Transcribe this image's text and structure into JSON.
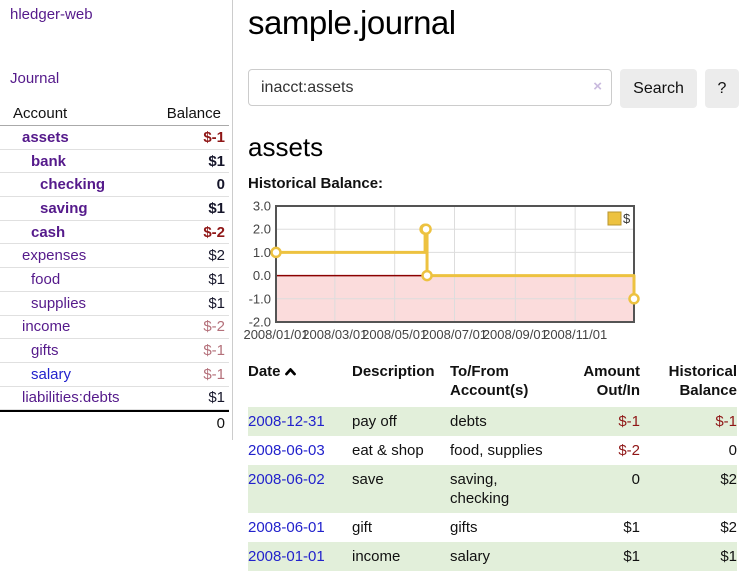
{
  "sidebar": {
    "app_title": "hledger-web",
    "journal_label": "Journal",
    "accounts_table": {
      "headers": {
        "account": "Account",
        "balance": "Balance"
      },
      "rows": [
        {
          "name": "assets",
          "depth": 1,
          "balance": "$-1",
          "emph": true,
          "tone": "neg-dark"
        },
        {
          "name": "bank",
          "depth": 2,
          "balance": "$1",
          "emph": true,
          "tone": "plain"
        },
        {
          "name": "checking",
          "depth": 3,
          "balance": "0",
          "emph": true,
          "tone": "plain"
        },
        {
          "name": "saving",
          "depth": 3,
          "balance": "$1",
          "emph": true,
          "tone": "plain"
        },
        {
          "name": "cash",
          "depth": 2,
          "balance": "$-2",
          "emph": true,
          "tone": "neg-dark"
        },
        {
          "name": "expenses",
          "depth": 1,
          "balance": "$2",
          "emph": false,
          "tone": "plain"
        },
        {
          "name": "food",
          "depth": 2,
          "balance": "$1",
          "emph": false,
          "tone": "plain"
        },
        {
          "name": "supplies",
          "depth": 2,
          "balance": "$1",
          "emph": false,
          "tone": "plain"
        },
        {
          "name": "income",
          "depth": 1,
          "balance": "$-2",
          "emph": false,
          "tone": "neg-soft"
        },
        {
          "name": "gifts",
          "depth": 2,
          "balance": "$-1",
          "emph": false,
          "tone": "neg-soft"
        },
        {
          "name": "salary",
          "depth": 2,
          "balance": "$-1",
          "emph": false,
          "tone": "neg-soft",
          "link_color": "blue"
        },
        {
          "name": "liabilities:debts",
          "depth": 1,
          "balance": "$1",
          "emph": false,
          "tone": "plain"
        }
      ],
      "total": "0"
    }
  },
  "main": {
    "title": "sample.journal",
    "search": {
      "value": "inacct:assets",
      "clear_icon": "×",
      "search_button": "Search",
      "help_button": "?"
    },
    "account_heading": "assets",
    "chart_label": "Historical Balance:"
  },
  "chart_data": {
    "type": "line",
    "interpolation": "step",
    "title": "Historical Balance",
    "series": [
      {
        "name": "$",
        "color": "#edc240",
        "points": [
          [
            "2008-01-01",
            1
          ],
          [
            "2008-06-01",
            2
          ],
          [
            "2008-06-02",
            2
          ],
          [
            "2008-06-03",
            0
          ],
          [
            "2008-12-31",
            -1
          ]
        ]
      }
    ],
    "x_range": [
      "2008-01-01",
      "2008-12-31"
    ],
    "ylim": [
      -2,
      3
    ],
    "yticks": [
      3.0,
      2.0,
      1.0,
      0.0,
      -1.0,
      -2.0
    ],
    "xtick_labels": [
      "2008/01/01",
      "2008/03/01",
      "2008/05/01",
      "2008/07/01",
      "2008/09/01",
      "2008/11/01"
    ],
    "grid": true,
    "legend_position": "top-right",
    "legend_label": "$",
    "negative_region_fill": "#fbdcdc",
    "zero_line_color": "#8b0000",
    "grid_color": "#dddddd",
    "border_color": "#545454"
  },
  "transactions": {
    "headers": {
      "date": "Date",
      "description": "Description",
      "accounts_line1": "To/From",
      "accounts_line2": "Account(s)",
      "amount_line1": "Amount",
      "amount_line2": "Out/In",
      "balance_line1": "Historical",
      "balance_line2": "Balance"
    },
    "rows": [
      {
        "date": "2008-12-31",
        "description": "pay off",
        "accounts": "debts",
        "amount": "$-1",
        "amount_negative": true,
        "balance": "$-1",
        "balance_negative": true,
        "stripe": true
      },
      {
        "date": "2008-06-03",
        "description": "eat & shop",
        "accounts": "food, supplies",
        "amount": "$-2",
        "amount_negative": true,
        "balance": "0",
        "balance_negative": false,
        "stripe": false
      },
      {
        "date": "2008-06-02",
        "description": "save",
        "accounts": "saving, checking",
        "amount": "0",
        "amount_negative": false,
        "balance": "$2",
        "balance_negative": false,
        "stripe": true
      },
      {
        "date": "2008-06-01",
        "description": "gift",
        "accounts": "gifts",
        "amount": "$1",
        "amount_negative": false,
        "balance": "$2",
        "balance_negative": false,
        "stripe": false
      },
      {
        "date": "2008-01-01",
        "description": "income",
        "accounts": "salary",
        "amount": "$1",
        "amount_negative": false,
        "balance": "$1",
        "balance_negative": false,
        "stripe": true
      }
    ]
  }
}
